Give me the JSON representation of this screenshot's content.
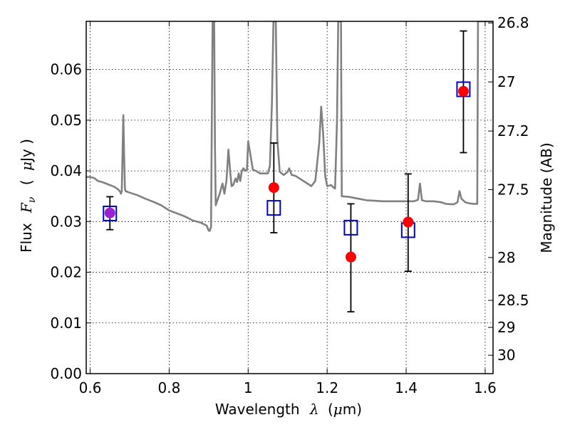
{
  "chart_data": {
    "type": "scatter",
    "xlabel_text": "Wavelength",
    "xlabel_symbol": "λ",
    "xlabel_unit_open": "(",
    "xlabel_unit_mu": "μ",
    "xlabel_unit_rest": "m)",
    "ylabel_text": "Flux",
    "ylabel_symbol": "F",
    "ylabel_sub": "ν",
    "ylabel_unit_open": "(",
    "ylabel_unit_mu": "μ",
    "ylabel_unit_rest": "Jy )",
    "y2label": "Magnitude (AB)",
    "xlim": [
      0.59,
      1.62
    ],
    "ylim": [
      0.0,
      0.0695
    ],
    "grid": true,
    "x_ticks": [
      {
        "value": 0.6,
        "label": "0.6"
      },
      {
        "value": 0.8,
        "label": "0.8"
      },
      {
        "value": 1.0,
        "label": "1"
      },
      {
        "value": 1.2,
        "label": "1.2"
      },
      {
        "value": 1.4,
        "label": "1.4"
      },
      {
        "value": 1.6,
        "label": "1.6"
      }
    ],
    "y_ticks": [
      {
        "value": 0.0,
        "label": "0.00"
      },
      {
        "value": 0.01,
        "label": "0.01"
      },
      {
        "value": 0.02,
        "label": "0.02"
      },
      {
        "value": 0.03,
        "label": "0.03"
      },
      {
        "value": 0.04,
        "label": "0.04"
      },
      {
        "value": 0.05,
        "label": "0.05"
      },
      {
        "value": 0.06,
        "label": "0.06"
      }
    ],
    "mag_ticks": [
      {
        "value": 26.8,
        "label": "26.8"
      },
      {
        "value": 27.0,
        "label": "27"
      },
      {
        "value": 27.2,
        "label": "27.2"
      },
      {
        "value": 27.5,
        "label": "27.5"
      },
      {
        "value": 28.0,
        "label": "28"
      },
      {
        "value": 28.5,
        "label": "28.5"
      },
      {
        "value": 29.0,
        "label": "29"
      },
      {
        "value": 30.0,
        "label": "30"
      }
    ],
    "series": [
      {
        "type": "line",
        "color": "#808080",
        "points": [
          [
            0.59,
            0.0388
          ],
          [
            0.6,
            0.0388
          ],
          [
            0.61,
            0.0386
          ],
          [
            0.62,
            0.038
          ],
          [
            0.63,
            0.0378
          ],
          [
            0.64,
            0.0375
          ],
          [
            0.65,
            0.0372
          ],
          [
            0.66,
            0.0369
          ],
          [
            0.67,
            0.0364
          ],
          [
            0.675,
            0.036
          ],
          [
            0.678,
            0.0355
          ],
          [
            0.68,
            0.036
          ],
          [
            0.682,
            0.0435
          ],
          [
            0.684,
            0.051
          ],
          [
            0.686,
            0.043
          ],
          [
            0.688,
            0.0365
          ],
          [
            0.69,
            0.036
          ],
          [
            0.7,
            0.0357
          ],
          [
            0.72,
            0.0352
          ],
          [
            0.74,
            0.0345
          ],
          [
            0.76,
            0.0339
          ],
          [
            0.78,
            0.0332
          ],
          [
            0.8,
            0.0322
          ],
          [
            0.82,
            0.0316
          ],
          [
            0.84,
            0.031
          ],
          [
            0.86,
            0.0302
          ],
          [
            0.88,
            0.0298
          ],
          [
            0.895,
            0.0292
          ],
          [
            0.9,
            0.0282
          ],
          [
            0.903,
            0.0282
          ],
          [
            0.906,
            0.029
          ],
          [
            0.908,
            0.05
          ],
          [
            0.91,
            0.0695
          ],
          [
            0.914,
            0.0695
          ],
          [
            0.916,
            0.045
          ],
          [
            0.918,
            0.0332
          ],
          [
            0.922,
            0.0342
          ],
          [
            0.928,
            0.0355
          ],
          [
            0.935,
            0.0375
          ],
          [
            0.94,
            0.0355
          ],
          [
            0.945,
            0.038
          ],
          [
            0.95,
            0.0442
          ],
          [
            0.955,
            0.0395
          ],
          [
            0.958,
            0.037
          ],
          [
            0.962,
            0.0372
          ],
          [
            0.968,
            0.0385
          ],
          [
            0.972,
            0.0378
          ],
          [
            0.976,
            0.0395
          ],
          [
            0.98,
            0.038
          ],
          [
            0.984,
            0.04
          ],
          [
            0.988,
            0.0405
          ],
          [
            0.993,
            0.04
          ],
          [
            0.997,
            0.0403
          ],
          [
            1.0,
            0.0458
          ],
          [
            1.005,
            0.0435
          ],
          [
            1.012,
            0.0402
          ],
          [
            1.02,
            0.04
          ],
          [
            1.03,
            0.0395
          ],
          [
            1.04,
            0.0395
          ],
          [
            1.05,
            0.0395
          ],
          [
            1.055,
            0.041
          ],
          [
            1.06,
            0.053
          ],
          [
            1.064,
            0.0695
          ],
          [
            1.07,
            0.0695
          ],
          [
            1.074,
            0.046
          ],
          [
            1.08,
            0.0398
          ],
          [
            1.09,
            0.0392
          ],
          [
            1.1,
            0.0398
          ],
          [
            1.104,
            0.0405
          ],
          [
            1.11,
            0.0392
          ],
          [
            1.12,
            0.039
          ],
          [
            1.13,
            0.0385
          ],
          [
            1.14,
            0.038
          ],
          [
            1.15,
            0.0375
          ],
          [
            1.16,
            0.037
          ],
          [
            1.17,
            0.038
          ],
          [
            1.18,
            0.0455
          ],
          [
            1.185,
            0.0527
          ],
          [
            1.19,
            0.0472
          ],
          [
            1.195,
            0.039
          ],
          [
            1.2,
            0.037
          ],
          [
            1.21,
            0.0372
          ],
          [
            1.215,
            0.0368
          ],
          [
            1.22,
            0.0365
          ],
          [
            1.225,
            0.05
          ],
          [
            1.228,
            0.0695
          ],
          [
            1.235,
            0.0695
          ],
          [
            1.237,
            0.035
          ],
          [
            1.25,
            0.0349
          ],
          [
            1.26,
            0.0348
          ],
          [
            1.28,
            0.0345
          ],
          [
            1.3,
            0.0342
          ],
          [
            1.32,
            0.0341
          ],
          [
            1.34,
            0.034
          ],
          [
            1.36,
            0.034
          ],
          [
            1.38,
            0.034
          ],
          [
            1.4,
            0.034
          ],
          [
            1.42,
            0.034
          ],
          [
            1.43,
            0.0343
          ],
          [
            1.435,
            0.0375
          ],
          [
            1.44,
            0.0342
          ],
          [
            1.45,
            0.034
          ],
          [
            1.47,
            0.034
          ],
          [
            1.49,
            0.0338
          ],
          [
            1.5,
            0.0335
          ],
          [
            1.52,
            0.0334
          ],
          [
            1.53,
            0.0338
          ],
          [
            1.535,
            0.036
          ],
          [
            1.54,
            0.0345
          ],
          [
            1.55,
            0.0338
          ],
          [
            1.56,
            0.0336
          ],
          [
            1.57,
            0.0335
          ],
          [
            1.58,
            0.0335
          ],
          [
            1.582,
            0.0695
          ],
          [
            1.62,
            0.0695
          ]
        ]
      },
      {
        "type": "errorbar",
        "color": "#000000",
        "points": [
          {
            "x": 0.65,
            "y": 0.0317,
            "lo": 0.0284,
            "hi": 0.0349
          },
          {
            "x": 1.065,
            "y": 0.0367,
            "lo": 0.0278,
            "hi": 0.0455
          },
          {
            "x": 1.26,
            "y": 0.023,
            "lo": 0.0122,
            "hi": 0.0335
          },
          {
            "x": 1.405,
            "y": 0.0299,
            "lo": 0.0202,
            "hi": 0.0394
          },
          {
            "x": 1.545,
            "y": 0.0557,
            "lo": 0.0436,
            "hi": 0.0676
          }
        ]
      },
      {
        "type": "marker-square",
        "color": "#0000cc",
        "points": [
          [
            0.65,
            0.0316
          ],
          [
            1.065,
            0.0327
          ],
          [
            1.26,
            0.0288
          ],
          [
            1.405,
            0.0283
          ],
          [
            1.545,
            0.0561
          ]
        ]
      },
      {
        "type": "marker-circle",
        "color": "#ff0000",
        "points": [
          [
            0.65,
            0.0317
          ],
          [
            1.065,
            0.0367
          ],
          [
            1.26,
            0.023
          ],
          [
            1.405,
            0.0299
          ],
          [
            1.545,
            0.0557
          ]
        ],
        "overlap_color": "#9922cc"
      }
    ]
  }
}
